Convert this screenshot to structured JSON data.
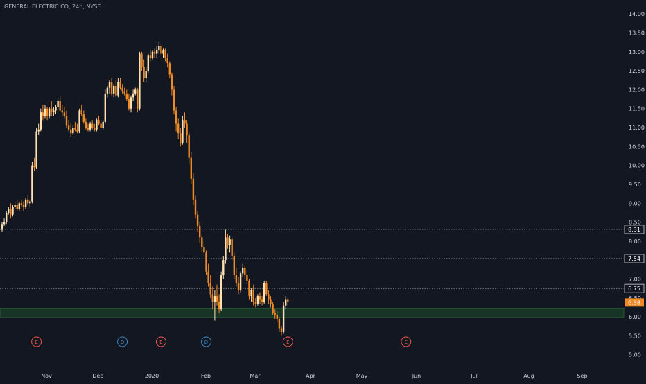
{
  "chart_data": {
    "type": "candlestick",
    "title": "GENERAL ELECTRIC CO, 24h, NYSE",
    "x_ticks": [
      "Nov",
      "Dec",
      "2020",
      "Feb",
      "Mar",
      "Apr",
      "May",
      "Jun",
      "Jul",
      "Aug",
      "Sep"
    ],
    "y_ticks": [
      "14.00",
      "13.50",
      "13.00",
      "12.50",
      "12.00",
      "11.50",
      "11.00",
      "10.50",
      "10.00",
      "9.50",
      "9.00",
      "8.50",
      "8.00",
      "7.50",
      "7.00",
      "6.50",
      "6.00",
      "5.50",
      "5.00"
    ],
    "ylim": [
      4.94,
      14.15
    ],
    "price_lines": [
      {
        "label": "8.31",
        "value": 8.31
      },
      {
        "label": "7.54",
        "value": 7.54
      },
      {
        "label": "6.75",
        "value": 6.75
      }
    ],
    "last_price": {
      "label": "6.38",
      "value": 6.38
    },
    "zone": {
      "low": 5.98,
      "high": 6.22
    },
    "events": [
      {
        "label": "E",
        "after_index": 16,
        "color": "#f0554b"
      },
      {
        "label": "D",
        "after_index": 56,
        "color": "#3d86c6"
      },
      {
        "label": "E",
        "after_index": 74,
        "color": "#f0554b"
      },
      {
        "label": "D",
        "after_index": 95,
        "color": "#3d86c6"
      },
      {
        "label": "E",
        "after_index": 133,
        "color": "#f0554b"
      },
      {
        "label": "E",
        "after_index": 188,
        "color": "#f0554b"
      }
    ],
    "colors": {
      "up": "#ffe0b2",
      "down": "#ef8a24",
      "background": "#131722",
      "grid": "#787b86",
      "zone": "#1e4d2b",
      "text": "#d1d4dc"
    },
    "candles": [
      [
        8.3,
        8.5,
        8.25,
        8.45
      ],
      [
        8.45,
        8.6,
        8.4,
        8.5
      ],
      [
        8.5,
        8.8,
        8.45,
        8.75
      ],
      [
        8.75,
        8.9,
        8.7,
        8.85
      ],
      [
        8.85,
        9.0,
        8.6,
        8.7
      ],
      [
        8.7,
        8.95,
        8.65,
        8.9
      ],
      [
        8.9,
        9.05,
        8.85,
        8.95
      ],
      [
        8.95,
        9.1,
        8.8,
        8.85
      ],
      [
        8.85,
        9.05,
        8.8,
        9.0
      ],
      [
        9.0,
        9.1,
        8.9,
        8.95
      ],
      [
        8.95,
        9.05,
        8.8,
        8.9
      ],
      [
        8.9,
        9.15,
        8.85,
        9.1
      ],
      [
        9.1,
        9.2,
        8.95,
        9.0
      ],
      [
        9.0,
        9.1,
        8.9,
        9.05
      ],
      [
        9.05,
        10.1,
        9.0,
        10.0
      ],
      [
        10.0,
        10.2,
        9.85,
        9.95
      ],
      [
        9.95,
        11.0,
        9.9,
        10.9
      ],
      [
        10.9,
        11.1,
        10.8,
        10.95
      ],
      [
        10.95,
        11.5,
        10.9,
        11.4
      ],
      [
        11.4,
        11.6,
        11.2,
        11.3
      ],
      [
        11.3,
        11.6,
        11.25,
        11.5
      ],
      [
        11.5,
        11.55,
        11.2,
        11.3
      ],
      [
        11.3,
        11.55,
        11.25,
        11.5
      ],
      [
        11.5,
        11.7,
        11.3,
        11.4
      ],
      [
        11.4,
        11.55,
        11.3,
        11.45
      ],
      [
        11.45,
        11.6,
        11.35,
        11.55
      ],
      [
        11.55,
        11.8,
        11.45,
        11.7
      ],
      [
        11.7,
        11.85,
        11.4,
        11.45
      ],
      [
        11.45,
        11.6,
        11.3,
        11.4
      ],
      [
        11.4,
        11.55,
        11.25,
        11.3
      ],
      [
        11.3,
        11.45,
        11.0,
        11.05
      ],
      [
        11.05,
        11.2,
        10.9,
        10.95
      ],
      [
        10.95,
        11.1,
        10.75,
        10.85
      ],
      [
        10.85,
        11.05,
        10.8,
        11.0
      ],
      [
        11.0,
        11.15,
        10.9,
        10.95
      ],
      [
        10.95,
        11.1,
        10.85,
        10.9
      ],
      [
        10.9,
        11.5,
        10.85,
        11.45
      ],
      [
        11.45,
        11.6,
        11.3,
        11.35
      ],
      [
        11.35,
        11.45,
        11.1,
        11.15
      ],
      [
        11.15,
        11.25,
        10.95,
        11.0
      ],
      [
        11.0,
        11.1,
        10.9,
        10.95
      ],
      [
        10.95,
        11.15,
        10.9,
        11.1
      ],
      [
        11.1,
        11.2,
        10.95,
        11.0
      ],
      [
        11.0,
        11.1,
        10.9,
        10.95
      ],
      [
        10.95,
        11.25,
        10.9,
        11.2
      ],
      [
        11.2,
        11.3,
        11.05,
        11.1
      ],
      [
        11.1,
        11.2,
        10.95,
        11.0
      ],
      [
        11.0,
        11.2,
        10.95,
        11.15
      ],
      [
        11.15,
        12.0,
        11.1,
        11.9
      ],
      [
        11.9,
        12.1,
        11.8,
        12.05
      ],
      [
        12.05,
        12.25,
        11.9,
        12.2
      ],
      [
        12.2,
        12.3,
        11.85,
        11.9
      ],
      [
        11.9,
        12.15,
        11.8,
        12.1
      ],
      [
        12.1,
        12.25,
        11.8,
        11.85
      ],
      [
        11.85,
        12.3,
        11.8,
        12.2
      ],
      [
        12.2,
        12.3,
        12.0,
        12.05
      ],
      [
        12.05,
        12.15,
        11.9,
        11.95
      ],
      [
        11.95,
        12.05,
        11.85,
        11.9
      ],
      [
        11.9,
        12.0,
        11.7,
        11.75
      ],
      [
        11.75,
        11.9,
        11.45,
        11.5
      ],
      [
        11.5,
        11.85,
        11.4,
        11.8
      ],
      [
        11.8,
        12.0,
        11.7,
        11.9
      ],
      [
        11.9,
        12.05,
        11.85,
        12.0
      ],
      [
        12.0,
        12.05,
        11.4,
        11.5
      ],
      [
        11.5,
        13.0,
        11.45,
        12.95
      ],
      [
        12.95,
        13.0,
        12.5,
        12.6
      ],
      [
        12.6,
        12.8,
        12.2,
        12.3
      ],
      [
        12.3,
        12.6,
        12.2,
        12.5
      ],
      [
        12.5,
        12.95,
        12.45,
        12.9
      ],
      [
        12.9,
        13.05,
        12.75,
        12.85
      ],
      [
        12.85,
        13.05,
        12.8,
        13.0
      ],
      [
        13.0,
        13.1,
        12.85,
        12.95
      ],
      [
        12.95,
        13.15,
        12.85,
        13.05
      ],
      [
        13.05,
        13.25,
        12.95,
        13.15
      ],
      [
        13.15,
        13.2,
        12.9,
        12.95
      ],
      [
        12.95,
        13.1,
        12.85,
        13.05
      ],
      [
        13.05,
        13.1,
        12.75,
        12.85
      ],
      [
        12.85,
        12.95,
        12.6,
        12.7
      ],
      [
        12.7,
        12.75,
        12.3,
        12.4
      ],
      [
        12.4,
        12.45,
        11.85,
        12.0
      ],
      [
        12.0,
        12.1,
        11.35,
        11.45
      ],
      [
        11.45,
        11.55,
        10.9,
        11.1
      ],
      [
        11.1,
        11.25,
        10.7,
        10.85
      ],
      [
        10.85,
        11.0,
        10.5,
        10.6
      ],
      [
        10.6,
        11.3,
        10.55,
        11.2
      ],
      [
        11.2,
        11.4,
        11.0,
        11.1
      ],
      [
        11.1,
        11.2,
        10.6,
        10.8
      ],
      [
        10.8,
        10.9,
        10.05,
        10.2
      ],
      [
        10.2,
        10.35,
        9.5,
        9.65
      ],
      [
        9.65,
        9.8,
        8.95,
        9.1
      ],
      [
        9.1,
        9.2,
        8.6,
        8.7
      ],
      [
        8.7,
        8.8,
        8.25,
        8.4
      ],
      [
        8.4,
        8.5,
        7.95,
        8.1
      ],
      [
        8.1,
        8.2,
        7.7,
        7.85
      ],
      [
        7.85,
        8.0,
        7.6,
        7.7
      ],
      [
        7.7,
        7.75,
        7.1,
        7.2
      ],
      [
        7.2,
        7.4,
        6.8,
        6.9
      ],
      [
        6.9,
        7.1,
        6.5,
        6.6
      ],
      [
        6.6,
        6.8,
        6.2,
        6.4
      ],
      [
        6.4,
        6.7,
        5.9,
        6.55
      ],
      [
        6.55,
        6.85,
        6.3,
        6.4
      ],
      [
        6.4,
        6.6,
        6.1,
        6.2
      ],
      [
        6.2,
        7.2,
        6.15,
        7.1
      ],
      [
        7.1,
        7.6,
        7.0,
        7.5
      ],
      [
        7.5,
        8.3,
        7.4,
        8.1
      ],
      [
        8.1,
        8.2,
        7.8,
        7.9
      ],
      [
        7.9,
        8.15,
        7.7,
        8.05
      ],
      [
        8.05,
        8.1,
        7.5,
        7.6
      ],
      [
        7.6,
        7.7,
        7.0,
        7.1
      ],
      [
        7.1,
        7.3,
        6.8,
        6.9
      ],
      [
        6.9,
        7.05,
        6.6,
        6.7
      ],
      [
        6.7,
        7.2,
        6.65,
        7.15
      ],
      [
        7.15,
        7.4,
        7.05,
        7.3
      ],
      [
        7.3,
        7.35,
        7.0,
        7.1
      ],
      [
        7.1,
        7.25,
        6.85,
        6.95
      ],
      [
        6.95,
        7.0,
        6.45,
        6.55
      ],
      [
        6.55,
        6.75,
        6.4,
        6.7
      ],
      [
        6.7,
        6.85,
        6.3,
        6.4
      ],
      [
        6.4,
        6.5,
        6.25,
        6.35
      ],
      [
        6.35,
        6.6,
        6.3,
        6.55
      ],
      [
        6.55,
        6.65,
        6.35,
        6.45
      ],
      [
        6.45,
        6.55,
        6.3,
        6.4
      ],
      [
        6.4,
        6.95,
        6.35,
        6.9
      ],
      [
        6.9,
        6.95,
        6.55,
        6.6
      ],
      [
        6.6,
        6.7,
        6.35,
        6.45
      ],
      [
        6.45,
        6.55,
        6.25,
        6.35
      ],
      [
        6.35,
        6.4,
        6.05,
        6.1
      ],
      [
        6.1,
        6.2,
        5.95,
        6.05
      ],
      [
        6.05,
        6.15,
        5.85,
        5.95
      ],
      [
        5.95,
        6.0,
        5.6,
        5.7
      ],
      [
        5.7,
        5.75,
        5.5,
        5.6
      ],
      [
        5.6,
        6.4,
        5.55,
        6.3
      ],
      [
        6.3,
        6.55,
        6.2,
        6.45
      ],
      [
        6.45,
        6.5,
        6.3,
        6.4
      ]
    ]
  }
}
